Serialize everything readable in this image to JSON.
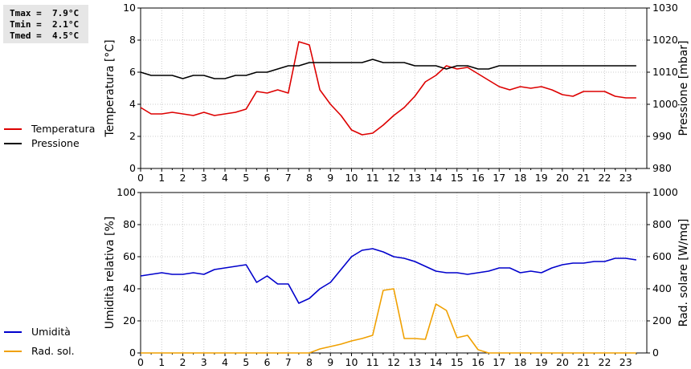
{
  "stats": {
    "tmax": "Tmax =  7.9°C",
    "tmin": "Tmin =  2.1°C",
    "tmed": "Tmed =  4.5°C"
  },
  "chart_data": [
    {
      "type": "line",
      "x": [
        0,
        0.5,
        1,
        1.5,
        2,
        2.5,
        3,
        3.5,
        4,
        4.5,
        5,
        5.5,
        6,
        6.5,
        7,
        7.5,
        8,
        8.5,
        9,
        9.5,
        10,
        10.5,
        11,
        11.5,
        12,
        12.5,
        13,
        13.5,
        14,
        14.5,
        15,
        15.5,
        16,
        16.5,
        17,
        17.5,
        18,
        18.5,
        19,
        19.5,
        20,
        20.5,
        21,
        21.5,
        22,
        22.5,
        23,
        23.5
      ],
      "xlim": [
        0,
        24
      ],
      "xticks": [
        "0",
        "1",
        "2",
        "3",
        "4",
        "5",
        "6",
        "7",
        "8",
        "9",
        "10",
        "11",
        "12",
        "13",
        "14",
        "15",
        "16",
        "17",
        "18",
        "19",
        "20",
        "21",
        "22",
        "23"
      ],
      "left_axis": {
        "label": "Temperatura [°C]",
        "ylim": [
          0,
          10
        ],
        "ticks": [
          "0",
          "2",
          "4",
          "6",
          "8",
          "10"
        ]
      },
      "right_axis": {
        "label": "Pressione [mbar]",
        "ylim": [
          980,
          1030
        ],
        "ticks": [
          "980",
          "990",
          "1000",
          "1010",
          "1020",
          "1030"
        ]
      },
      "grid": true,
      "legend_position": "left",
      "series": [
        {
          "name": "Temperatura",
          "color": "#dd0000",
          "axis": "left",
          "values": [
            3.8,
            3.4,
            3.4,
            3.5,
            3.4,
            3.3,
            3.5,
            3.3,
            3.4,
            3.5,
            3.7,
            4.8,
            4.7,
            4.9,
            4.7,
            7.9,
            7.7,
            4.9,
            4.0,
            3.3,
            2.4,
            2.1,
            2.2,
            2.7,
            3.3,
            3.8,
            4.5,
            5.4,
            5.8,
            6.4,
            6.2,
            6.3,
            5.9,
            5.5,
            5.1,
            4.9,
            5.1,
            5.0,
            5.1,
            4.9,
            4.6,
            4.5,
            4.8,
            4.8,
            4.8,
            4.5,
            4.4,
            4.4
          ]
        },
        {
          "name": "Pressione",
          "color": "#000000",
          "axis": "right",
          "values": [
            1010,
            1009,
            1009,
            1009,
            1008,
            1009,
            1009,
            1008,
            1008,
            1009,
            1009,
            1010,
            1010,
            1011,
            1012,
            1012,
            1013,
            1013,
            1013,
            1013,
            1013,
            1013,
            1014,
            1013,
            1013,
            1013,
            1012,
            1012,
            1012,
            1011,
            1012,
            1012,
            1011,
            1011,
            1012,
            1012,
            1012,
            1012,
            1012,
            1012,
            1012,
            1012,
            1012,
            1012,
            1012,
            1012,
            1012,
            1012
          ]
        }
      ]
    },
    {
      "type": "line",
      "x": [
        0,
        0.5,
        1,
        1.5,
        2,
        2.5,
        3,
        3.5,
        4,
        4.5,
        5,
        5.5,
        6,
        6.5,
        7,
        7.5,
        8,
        8.5,
        9,
        9.5,
        10,
        10.5,
        11,
        11.5,
        12,
        12.5,
        13,
        13.5,
        14,
        14.5,
        15,
        15.5,
        16,
        16.5,
        17,
        17.5,
        18,
        18.5,
        19,
        19.5,
        20,
        20.5,
        21,
        21.5,
        22,
        22.5,
        23,
        23.5
      ],
      "xlim": [
        0,
        24
      ],
      "xticks": [
        "0",
        "1",
        "2",
        "3",
        "4",
        "5",
        "6",
        "7",
        "8",
        "9",
        "10",
        "11",
        "12",
        "13",
        "14",
        "15",
        "16",
        "17",
        "18",
        "19",
        "20",
        "21",
        "22",
        "23"
      ],
      "left_axis": {
        "label": "Umidità relativa [%]",
        "ylim": [
          0,
          100
        ],
        "ticks": [
          "0",
          "20",
          "40",
          "60",
          "80",
          "100"
        ]
      },
      "right_axis": {
        "label": "Rad. solare [W/mq]",
        "ylim": [
          0,
          1000
        ],
        "ticks": [
          "0",
          "200",
          "400",
          "600",
          "800",
          "1000"
        ]
      },
      "grid": true,
      "legend_position": "left",
      "series": [
        {
          "name": "Umidità",
          "color": "#0000cc",
          "axis": "left",
          "values": [
            48,
            49,
            50,
            49,
            49,
            50,
            49,
            52,
            53,
            54,
            55,
            44,
            48,
            43,
            43,
            31,
            34,
            40,
            44,
            52,
            60,
            64,
            65,
            63,
            60,
            59,
            57,
            54,
            51,
            50,
            50,
            49,
            50,
            51,
            53,
            53,
            50,
            51,
            50,
            53,
            55,
            56,
            56,
            57,
            57,
            59,
            59,
            58
          ]
        },
        {
          "name": "Rad. sol.",
          "color": "#f0a000",
          "axis": "right",
          "values": [
            0,
            0,
            0,
            0,
            0,
            0,
            0,
            0,
            0,
            0,
            0,
            0,
            0,
            0,
            0,
            0,
            0,
            25,
            40,
            55,
            75,
            90,
            110,
            390,
            400,
            90,
            90,
            85,
            305,
            265,
            95,
            110,
            20,
            0,
            0,
            0,
            0,
            0,
            0,
            0,
            0,
            0,
            0,
            0,
            0,
            0,
            0,
            0
          ]
        }
      ]
    }
  ]
}
